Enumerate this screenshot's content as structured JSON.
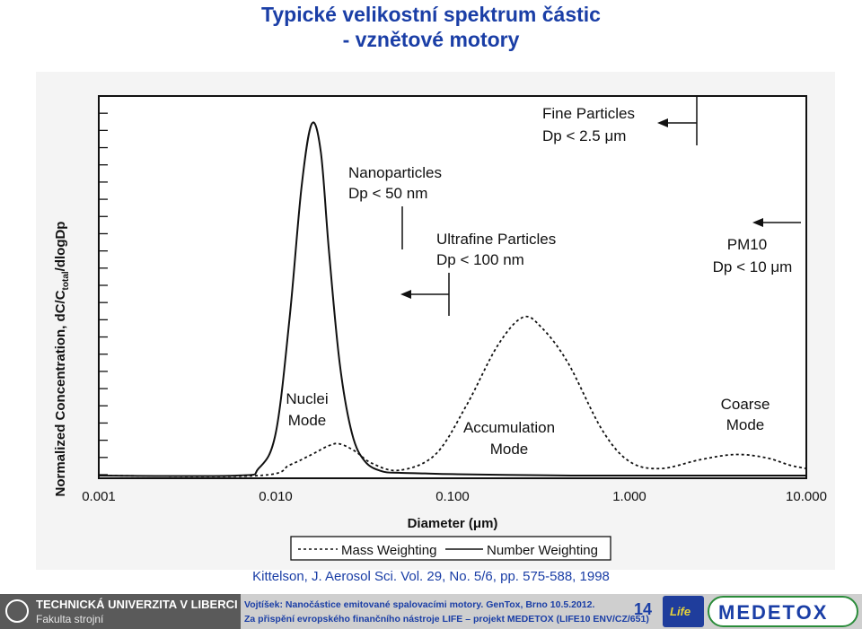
{
  "slide": {
    "title_line1": "Typické velikostní spektrum částic",
    "title_line2": "- vznětové motory",
    "citation": "Kittelson, J. Aerosol Sci. Vol. 29, No. 5/6, pp. 575-588, 1998"
  },
  "footer": {
    "university": "TECHNICKÁ UNIVERZITA V LIBERCI",
    "faculty": "Fakulta strojní",
    "line1": "Vojtíšek: Nanočástice emitované spalovacími motory. GenTox, Brno 10.5.2012.",
    "line2": "Za přispění evropského finančního nástroje LIFE – projekt MEDETOX (LIFE10 ENV/CZ/651)",
    "page_number": "14",
    "life_logo": "Life",
    "medetox_logo": "MEDETOX"
  },
  "chart_data": {
    "type": "line",
    "xscale": "log",
    "xlim": [
      0.001,
      10.0
    ],
    "xticks": [
      "0.001",
      "0.010",
      "0.100",
      "1.000",
      "10.000"
    ],
    "xlabel": "Diameter (μm)",
    "ylabel_parts": [
      "Normalized Concentration, dC/C",
      "total",
      "/dlogDp"
    ],
    "yticks_count": 23,
    "legend": {
      "placement": "bottom",
      "mass": "Mass Weighting",
      "number": "Number Weighting"
    },
    "series": [
      {
        "name": "Number Weighting",
        "style": "solid",
        "x": [
          0.001,
          0.006,
          0.008,
          0.01,
          0.012,
          0.014,
          0.016,
          0.018,
          0.02,
          0.023,
          0.027,
          0.032,
          0.04,
          0.05,
          0.07,
          0.1,
          0.2,
          0.5,
          1.0,
          10.0
        ],
        "y": [
          0.0,
          0.0,
          0.02,
          0.12,
          0.45,
          0.82,
          1.0,
          0.92,
          0.64,
          0.32,
          0.12,
          0.04,
          0.012,
          0.008,
          0.006,
          0.004,
          0.002,
          0.0,
          0.0,
          0.0
        ]
      },
      {
        "name": "Mass Weighting",
        "style": "dotted",
        "x": [
          0.001,
          0.008,
          0.012,
          0.016,
          0.02,
          0.023,
          0.028,
          0.035,
          0.05,
          0.08,
          0.12,
          0.18,
          0.25,
          0.32,
          0.45,
          0.7,
          1.0,
          1.5,
          2.5,
          4.0,
          6.0,
          8.0,
          10.0
        ],
        "y": [
          0.0,
          0.0,
          0.03,
          0.06,
          0.085,
          0.09,
          0.07,
          0.035,
          0.015,
          0.06,
          0.2,
          0.37,
          0.45,
          0.42,
          0.32,
          0.13,
          0.04,
          0.02,
          0.045,
          0.06,
          0.05,
          0.03,
          0.02
        ]
      }
    ],
    "annotations": [
      {
        "name": "Fine Particles",
        "lines": [
          "Fine Particles",
          "Dp < 2.5 μm"
        ]
      },
      {
        "name": "Nanoparticles",
        "lines": [
          "Nanoparticles",
          "Dp < 50 nm"
        ]
      },
      {
        "name": "Ultrafine Particles",
        "lines": [
          "Ultrafine Particles",
          "Dp < 100 nm"
        ]
      },
      {
        "name": "PM10",
        "lines": [
          "PM10",
          "Dp < 10 μm"
        ]
      },
      {
        "name": "Nuclei Mode",
        "lines": [
          "Nuclei",
          "Mode"
        ]
      },
      {
        "name": "Accumulation Mode",
        "lines": [
          "Accumulation",
          "Mode"
        ]
      },
      {
        "name": "Coarse Mode",
        "lines": [
          "Coarse",
          "Mode"
        ]
      }
    ]
  }
}
